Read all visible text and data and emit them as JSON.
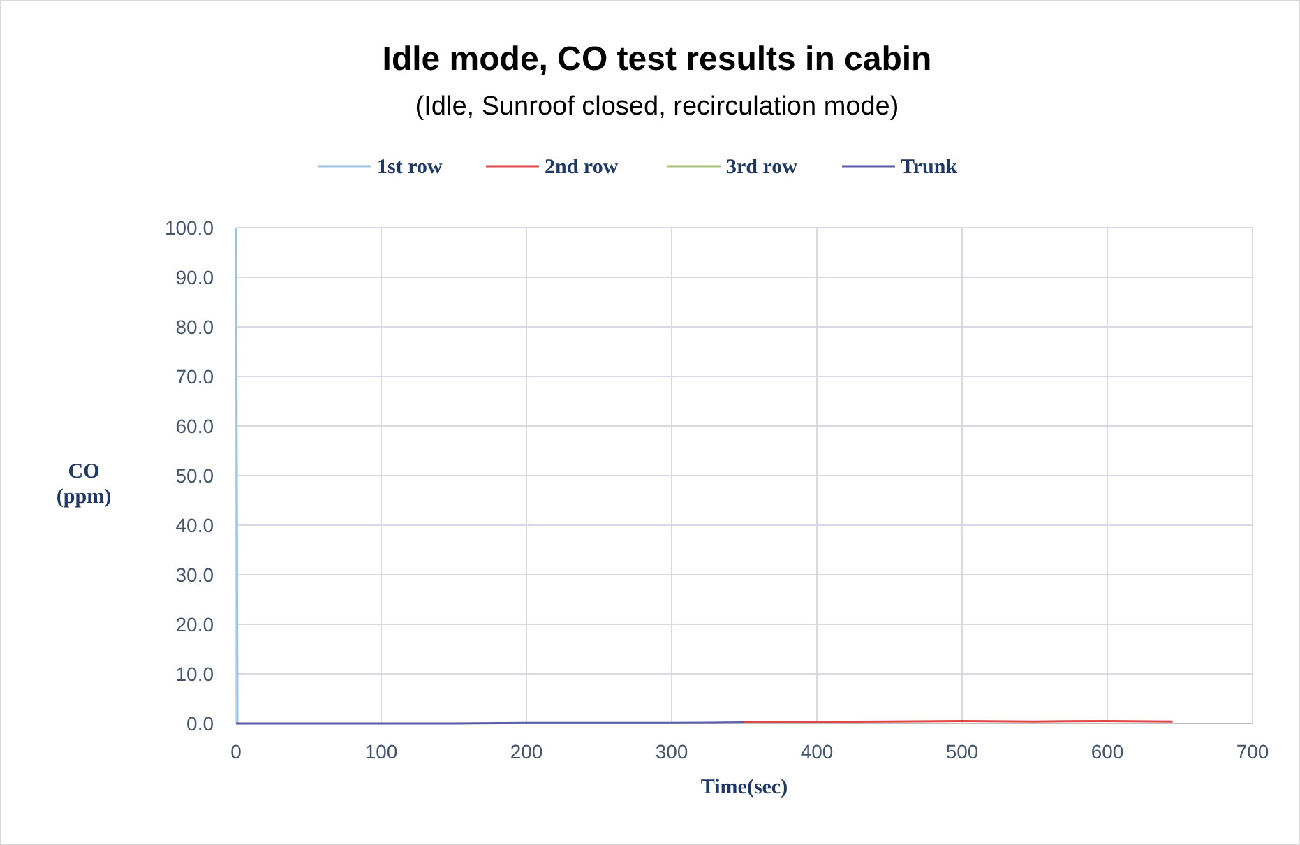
{
  "chart_data": {
    "type": "line",
    "title": "Idle mode, CO test results in cabin",
    "subtitle": "(Idle,  Sunroof closed, recirculation mode)",
    "xlabel": "Time(sec)",
    "ylabel": "CO (ppm)",
    "x": [
      0,
      50,
      100,
      150,
      200,
      250,
      300,
      350,
      400,
      450,
      500,
      550,
      600,
      645
    ],
    "series": [
      {
        "name": "1st row",
        "color": "#9dc3e6",
        "x": [
          0,
          1
        ],
        "values": [
          100,
          0.0
        ]
      },
      {
        "name": "2nd row",
        "color": "#e04848",
        "values": [
          null,
          null,
          null,
          null,
          null,
          null,
          null,
          0.2,
          0.3,
          0.4,
          0.5,
          0.4,
          0.5,
          0.4
        ]
      },
      {
        "name": "3rd row",
        "color": "#a9c27a",
        "values": [
          null,
          null,
          null,
          null,
          null,
          null,
          null,
          null,
          null,
          null,
          null,
          null,
          null,
          null
        ]
      },
      {
        "name": "Trunk",
        "color": "#5b5ba8",
        "values": [
          0.0,
          0.0,
          0.0,
          0.0,
          0.1,
          0.1,
          0.1,
          0.2,
          null,
          null,
          null,
          null,
          null,
          null
        ]
      }
    ],
    "xlim": [
      0,
      700
    ],
    "xticks": [
      0,
      100,
      200,
      300,
      400,
      500,
      600,
      700
    ],
    "ylim": [
      0,
      100
    ],
    "yticks": [
      {
        "value": 0,
        "label": "0.0"
      },
      {
        "value": 10,
        "label": "10.0"
      },
      {
        "value": 20,
        "label": "20.0"
      },
      {
        "value": 30,
        "label": "30.0"
      },
      {
        "value": 40,
        "label": "40.0"
      },
      {
        "value": 50,
        "label": "50.0"
      },
      {
        "value": 60,
        "label": "60.0"
      },
      {
        "value": 70,
        "label": "70.0"
      },
      {
        "value": 80,
        "label": "80.0"
      },
      {
        "value": 90,
        "label": "90.0"
      },
      {
        "value": 100,
        "label": "100.0"
      }
    ],
    "grid": true,
    "legend": "top",
    "marker": "none",
    "line_style": "solid"
  }
}
